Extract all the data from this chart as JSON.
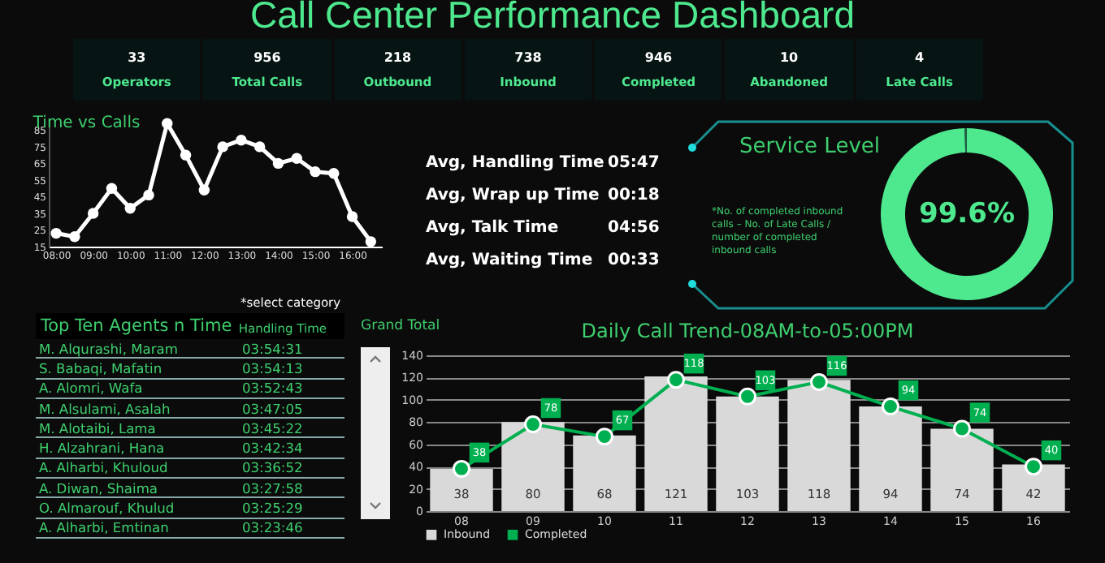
{
  "chart_data": [
    {
      "type": "other",
      "title": "Call Center Performance Dashboard",
      "categories": [
        "Operators",
        "Total Calls",
        "Outbound",
        "Inbound",
        "Completed",
        "Abandoned",
        "Late Calls"
      ],
      "values": [
        33,
        956,
        218,
        738,
        946,
        10,
        4
      ],
      "data_labels": true
    },
    {
      "type": "line",
      "title": "Time vs Calls",
      "x": [
        8,
        8.5,
        9,
        9.5,
        10,
        10.5,
        11,
        11.5,
        12,
        12.5,
        13,
        13.5,
        14,
        14.5,
        15,
        15.5,
        16,
        16.5
      ],
      "series": [
        {
          "color": "#ffffff",
          "values": [
            23,
            21,
            35,
            50,
            38,
            46,
            89,
            70,
            49,
            75,
            79,
            75,
            65,
            68,
            60,
            59,
            33,
            18
          ]
        }
      ],
      "xlim": [
        7.8,
        16.8
      ],
      "xticks": [
        {
          "value": 8,
          "label": "08:00"
        },
        {
          "value": 9,
          "label": "09:00"
        },
        {
          "value": 10,
          "label": "10:00"
        },
        {
          "value": 11,
          "label": "11:00"
        },
        {
          "value": 12,
          "label": "12:00"
        },
        {
          "value": 13,
          "label": "13:00"
        },
        {
          "value": 14,
          "label": "14:00"
        },
        {
          "value": 15,
          "label": "15:00"
        },
        {
          "value": 16,
          "label": "16:00"
        }
      ],
      "ylim": [
        15,
        92
      ],
      "yticks": [
        15,
        25,
        35,
        45,
        55,
        65,
        75,
        85
      ],
      "marker": "circle",
      "line_style": "solid"
    },
    {
      "type": "other",
      "categories": [
        "Avg, Handling Time",
        "Avg, Wrap up Time",
        "Avg, Talk Time",
        "Avg, Waiting Time"
      ],
      "value_labels": [
        "05:47",
        "00:18",
        "04:56",
        "00:33"
      ]
    },
    {
      "type": "donut",
      "title": "Service Level",
      "categories": [
        null,
        null
      ],
      "values": [
        99.6,
        0.4
      ],
      "colors": [
        "#4ee88e",
        "#1f5c44"
      ],
      "value_labels": [
        "99.6%",
        null
      ],
      "annotations": [
        "*No. of completed inbound calls – No. of Late Calls / number of completed inbound calls"
      ]
    },
    {
      "type": "other",
      "title": "Top Ten Agents n Time",
      "xlabel": "Handling Time",
      "categories": [
        "M. Alqurashi, Maram",
        "S. Babaqi, Mafatin",
        "A. Alomri, Wafa",
        "M. Alsulami, Asalah",
        "M. Alotaibi, Lama",
        "H. Alzahrani, Hana",
        "A. Alharbi, Khuloud",
        "A. Diwan, Shaima",
        "O. Almarouf, Khulud",
        "A. Alharbi, Emtinan"
      ],
      "value_labels": [
        "03:54:31",
        "03:54:13",
        "03:52:43",
        "03:47:05",
        "03:45:22",
        "03:42:34",
        "03:36:52",
        "03:27:58",
        "03:25:29",
        "03:23:46"
      ],
      "annotations": [
        "*select category",
        "Grand Total"
      ]
    },
    {
      "type": "bar",
      "title": "Daily Call Trend-08AM-to-05:00PM",
      "categories": [
        "08",
        "09",
        "10",
        "11",
        "12",
        "13",
        "14",
        "15",
        "16"
      ],
      "series": [
        {
          "name": "Inbound",
          "type": "bar",
          "color": "#d9d9d9",
          "values": [
            38,
            80,
            68,
            121,
            103,
            118,
            94,
            74,
            42
          ]
        },
        {
          "name": "Completed",
          "type": "line",
          "color": "#00b050",
          "values": [
            38,
            78,
            67,
            118,
            103,
            116,
            94,
            74,
            40
          ]
        }
      ],
      "ylim": [
        0,
        140
      ],
      "yticks": [
        0,
        20,
        40,
        60,
        80,
        100,
        120,
        140
      ],
      "grid": "y",
      "legend": "bottom",
      "marker": "circle",
      "data_labels": true
    }
  ]
}
